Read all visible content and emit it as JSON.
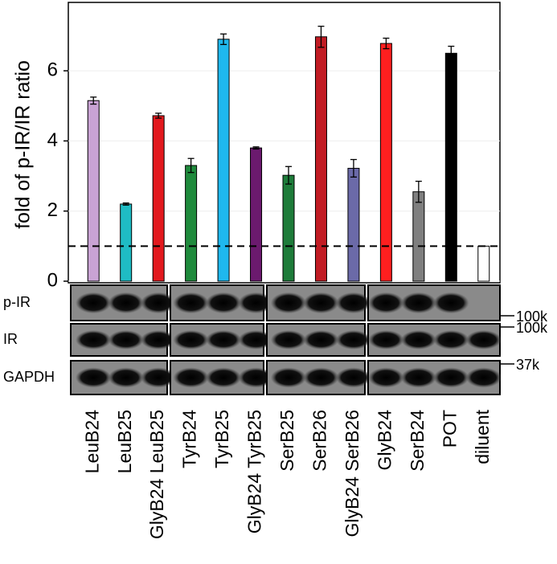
{
  "chart_data": {
    "type": "bar",
    "ylabel": "fold of p-IR/IR ratio",
    "categories": [
      "LeuB24",
      "LeuB25",
      "GlyB24 LeuB25",
      "TyrB24",
      "TyrB25",
      "GlyB24 TyrB25",
      "SerB25",
      "SerB26",
      "GlyB24 SerB26",
      "GlyB24",
      "SerB24",
      "POT",
      "diluent"
    ],
    "values": [
      5.15,
      2.2,
      4.72,
      3.3,
      6.9,
      3.8,
      3.02,
      6.97,
      3.22,
      6.78,
      2.55,
      6.5,
      1.0
    ],
    "errors": [
      0.1,
      0.03,
      0.07,
      0.2,
      0.15,
      0.03,
      0.25,
      0.3,
      0.25,
      0.15,
      0.3,
      0.2,
      0
    ],
    "colors": [
      "#c9a3d4",
      "#1fbcc4",
      "#e2191e",
      "#1f8a3c",
      "#1fb8ee",
      "#6b1a6e",
      "#1e7c3a",
      "#c11c24",
      "#6b6aa8",
      "#ff1f1f",
      "#7f7f7f",
      "#000000",
      "#ffffff"
    ],
    "ylim": [
      0,
      7.95
    ],
    "yticks": [
      0,
      2,
      4,
      6
    ],
    "reference_line": 1
  },
  "blots": [
    {
      "label": "p-IR",
      "marker": "100k"
    },
    {
      "label": "IR",
      "marker": "100k"
    },
    {
      "label": "GAPDH",
      "marker": "37k"
    }
  ]
}
